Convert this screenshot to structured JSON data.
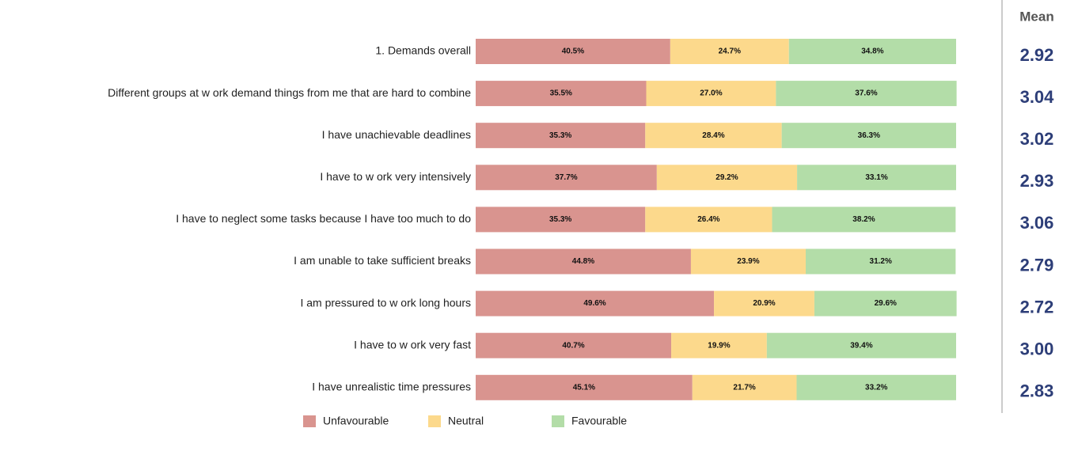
{
  "chart_data": {
    "type": "stacked-bar-horizontal",
    "categories": [
      "1. Demands overall",
      "Different groups at w ork demand things from me that are hard to combine",
      "I have unachievable deadlines",
      "I have to w ork very intensively",
      "I have to neglect some tasks because I have too much to do",
      "I am unable to take sufficient breaks",
      "I am pressured to w ork long hours",
      "I have to w ork very fast",
      "I have unrealistic time pressures"
    ],
    "xlim": [
      0,
      100
    ],
    "legend": "bottom",
    "series": [
      {
        "name": "Unfavourable",
        "color": "#d9948f",
        "values": [
          40.5,
          35.5,
          35.3,
          37.7,
          35.3,
          44.8,
          49.6,
          40.7,
          45.1
        ],
        "value_labels": [
          "40.5%",
          "35.5%",
          "35.3%",
          "37.7%",
          "35.3%",
          "44.8%",
          "49.6%",
          "40.7%",
          "45.1%"
        ]
      },
      {
        "name": "Neutral",
        "color": "#fcd98c",
        "values": [
          24.7,
          27.0,
          28.4,
          29.2,
          26.4,
          23.9,
          20.9,
          19.9,
          21.7
        ],
        "value_labels": [
          "24.7%",
          "27.0%",
          "28.4%",
          "29.2%",
          "26.4%",
          "23.9%",
          "20.9%",
          "19.9%",
          "21.7%"
        ]
      },
      {
        "name": "Favourable",
        "color": "#b3dda8",
        "values": [
          34.8,
          37.6,
          36.3,
          33.1,
          38.2,
          31.2,
          29.6,
          39.4,
          33.2
        ],
        "value_labels": [
          "34.8%",
          "37.6%",
          "36.3%",
          "33.1%",
          "38.2%",
          "31.2%",
          "29.6%",
          "39.4%",
          "33.2%"
        ]
      }
    ],
    "mean": {
      "title": "Mean",
      "color": "#2d3e78",
      "values": [
        2.92,
        3.04,
        3.02,
        2.93,
        3.06,
        2.79,
        2.72,
        3.0,
        2.83
      ],
      "value_labels": [
        "2.92",
        "3.04",
        "3.02",
        "2.93",
        "3.06",
        "2.79",
        "2.72",
        "3.00",
        "2.83"
      ]
    }
  }
}
